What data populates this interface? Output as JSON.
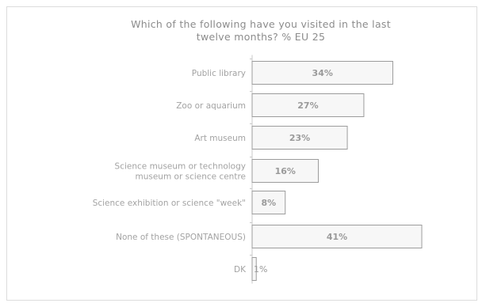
{
  "chart_data": {
    "type": "bar",
    "orientation": "horizontal",
    "title_lines": [
      "Which of the following have you visited in the last",
      "twelve months? % EU 25"
    ],
    "categories": [
      [
        "Public library"
      ],
      [
        "Zoo or aquarium"
      ],
      [
        "Art museum"
      ],
      [
        "Science museum or technology",
        "museum or science centre"
      ],
      [
        "Science exhibition or science \"week\""
      ],
      [
        "None of these (SPONTANEOUS)"
      ],
      [
        "DK"
      ]
    ],
    "values": [
      34,
      27,
      23,
      16,
      8,
      41,
      1
    ],
    "value_labels": [
      "34%",
      "27%",
      "23%",
      "16%",
      "8%",
      "41%",
      "1%"
    ],
    "xlim": [
      0,
      41
    ],
    "grid": false,
    "colors": {
      "bar_fill": "#f7f7f7",
      "bar_stroke": "#9c9c9c",
      "text": "#a3a3a3"
    }
  }
}
